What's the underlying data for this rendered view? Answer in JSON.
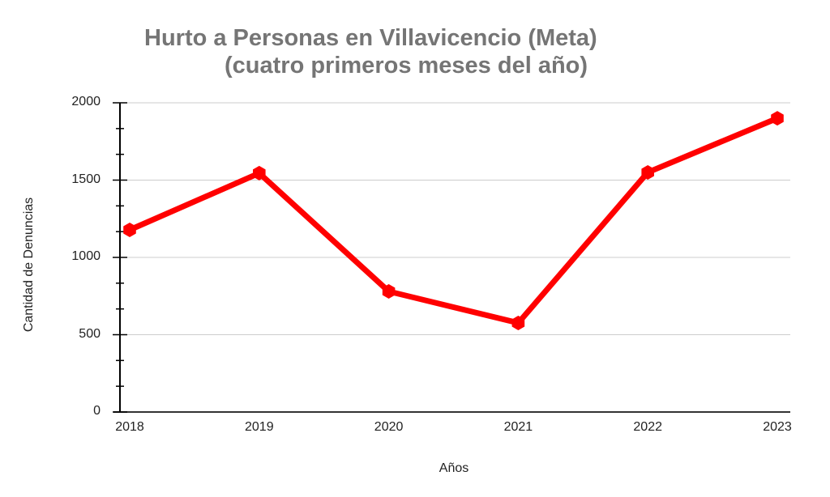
{
  "chart_data": {
    "type": "line",
    "title": "Hurto a Personas en Villavicencio (Meta)",
    "subtitle": "(cuatro primeros meses del año)",
    "xlabel": "Años",
    "ylabel": "Cantidad de Denuncias",
    "categories": [
      "2018",
      "2019",
      "2020",
      "2021",
      "2022",
      "2023"
    ],
    "series": [
      {
        "name": "Hurto a Personas",
        "values": [
          1178,
          1545,
          780,
          576,
          1550,
          1900
        ],
        "color": "#ff0000"
      }
    ],
    "ylim": [
      0,
      2000
    ],
    "yticks": [
      "0",
      "500",
      "1000",
      "1500",
      "2000"
    ],
    "grid": true,
    "legend": "none"
  },
  "colors": {
    "line": "#ff0000",
    "grid": "#cccccc",
    "title": "#757575",
    "axis": "#000000"
  }
}
